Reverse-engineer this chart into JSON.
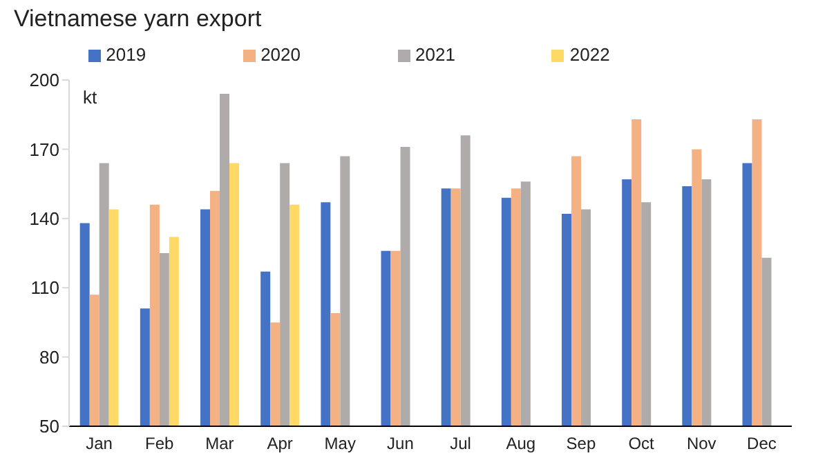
{
  "chart_data": {
    "type": "bar",
    "title": "Vietnamese yarn export",
    "ylabel": "kt",
    "categories": [
      "Jan",
      "Feb",
      "Mar",
      "Apr",
      "May",
      "Jun",
      "Jul",
      "Aug",
      "Sep",
      "Oct",
      "Nov",
      "Dec"
    ],
    "series": [
      {
        "name": "2019",
        "color": "#4472c4",
        "values": [
          138,
          101,
          144,
          117,
          147,
          126,
          153,
          149,
          142,
          157,
          154,
          164
        ]
      },
      {
        "name": "2020",
        "color": "#f4b183",
        "values": [
          107,
          146,
          152,
          95,
          99,
          126,
          153,
          153,
          167,
          183,
          170,
          183
        ]
      },
      {
        "name": "2021",
        "color": "#afabab",
        "values": [
          164,
          125,
          194,
          164,
          167,
          171,
          176,
          156,
          144,
          147,
          157,
          123
        ]
      },
      {
        "name": "2022",
        "color": "#ffd966",
        "values": [
          144,
          132,
          164,
          146,
          null,
          null,
          null,
          null,
          null,
          null,
          null,
          null
        ]
      }
    ],
    "ylim": [
      50,
      200
    ],
    "yticks": [
      50,
      80,
      110,
      140,
      170,
      200
    ],
    "grid": false,
    "legend": "top"
  }
}
